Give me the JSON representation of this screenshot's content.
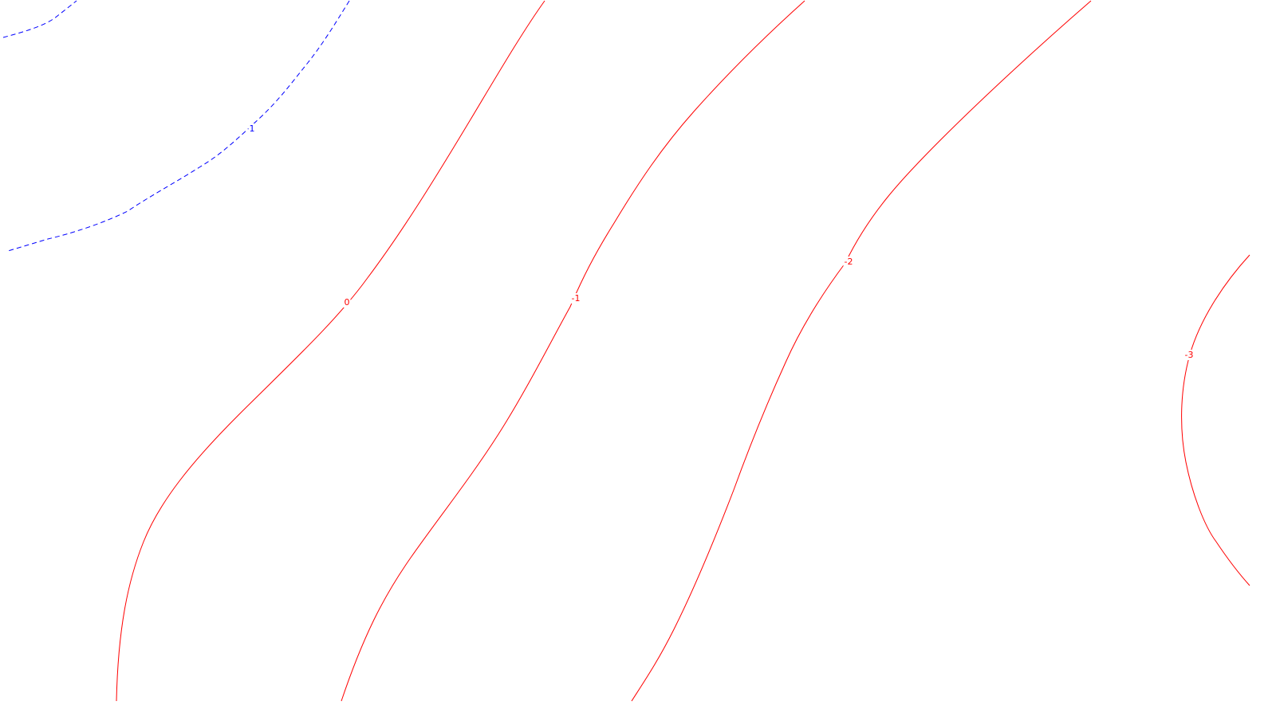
{
  "chart_data": {
    "type": "contour",
    "title": "",
    "xlabel": "",
    "ylabel": "",
    "grid": false,
    "legend": "none",
    "colors": {
      "positive": "#0000ff",
      "nonpositive": "#ff0000"
    },
    "line_styles": {
      "positive": "dashed",
      "nonpositive": "solid"
    },
    "levels": [
      {
        "value": 1,
        "label": "1"
      },
      {
        "value": 0,
        "label": "0"
      },
      {
        "value": -1,
        "label": "-1"
      },
      {
        "value": -2,
        "label": "-2"
      },
      {
        "value": -3,
        "label": "-3"
      }
    ]
  }
}
